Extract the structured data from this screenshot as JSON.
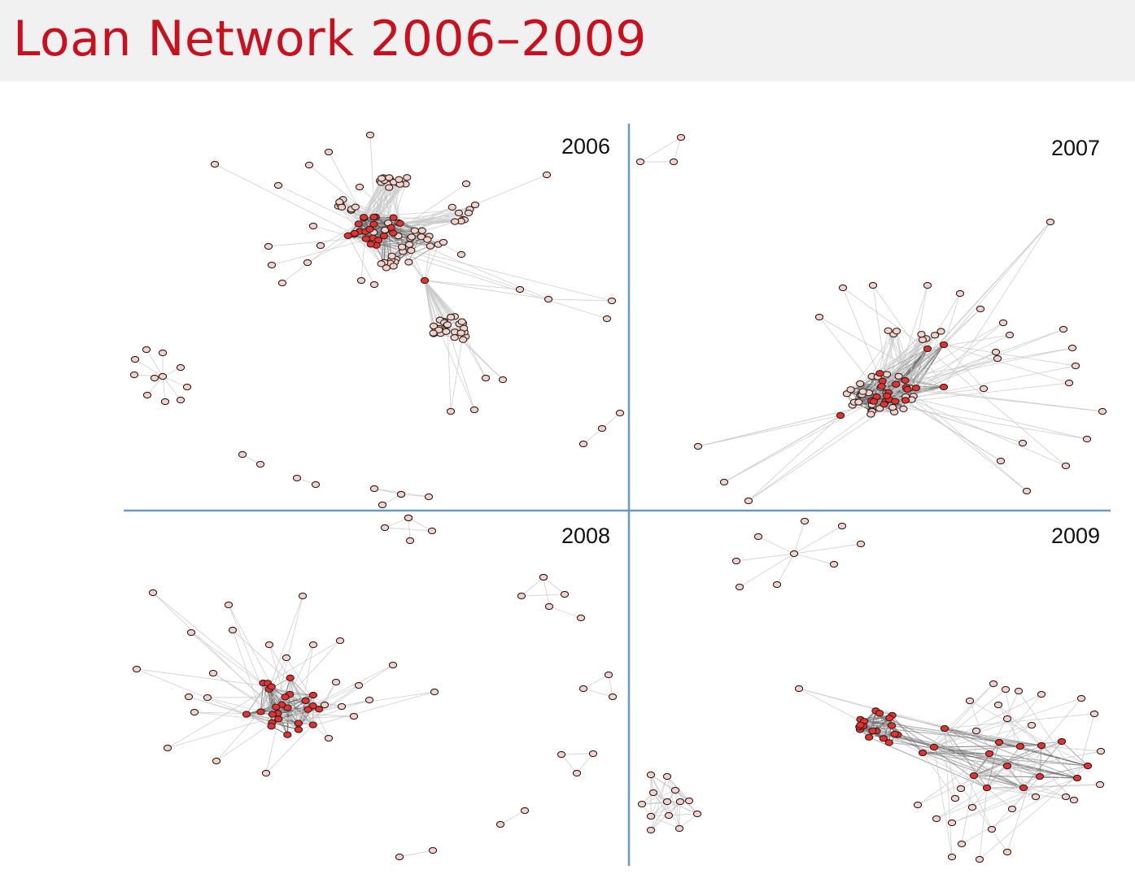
{
  "title": "Loan Network 2006–2009",
  "colors": {
    "title": "#c8101e",
    "divider": "#6d98c6",
    "edge_light": "#c9c9c9",
    "edge_dark": "#6c6c6c",
    "node_peripheral": "#f3d3c9",
    "node_core": "#e8312f",
    "node_stroke": "#2b1d1d"
  },
  "panels": [
    {
      "year": "2006",
      "name": "panel-2006"
    },
    {
      "year": "2007",
      "name": "panel-2007"
    },
    {
      "year": "2008",
      "name": "panel-2008"
    },
    {
      "year": "2009",
      "name": "panel-2009"
    }
  ]
}
